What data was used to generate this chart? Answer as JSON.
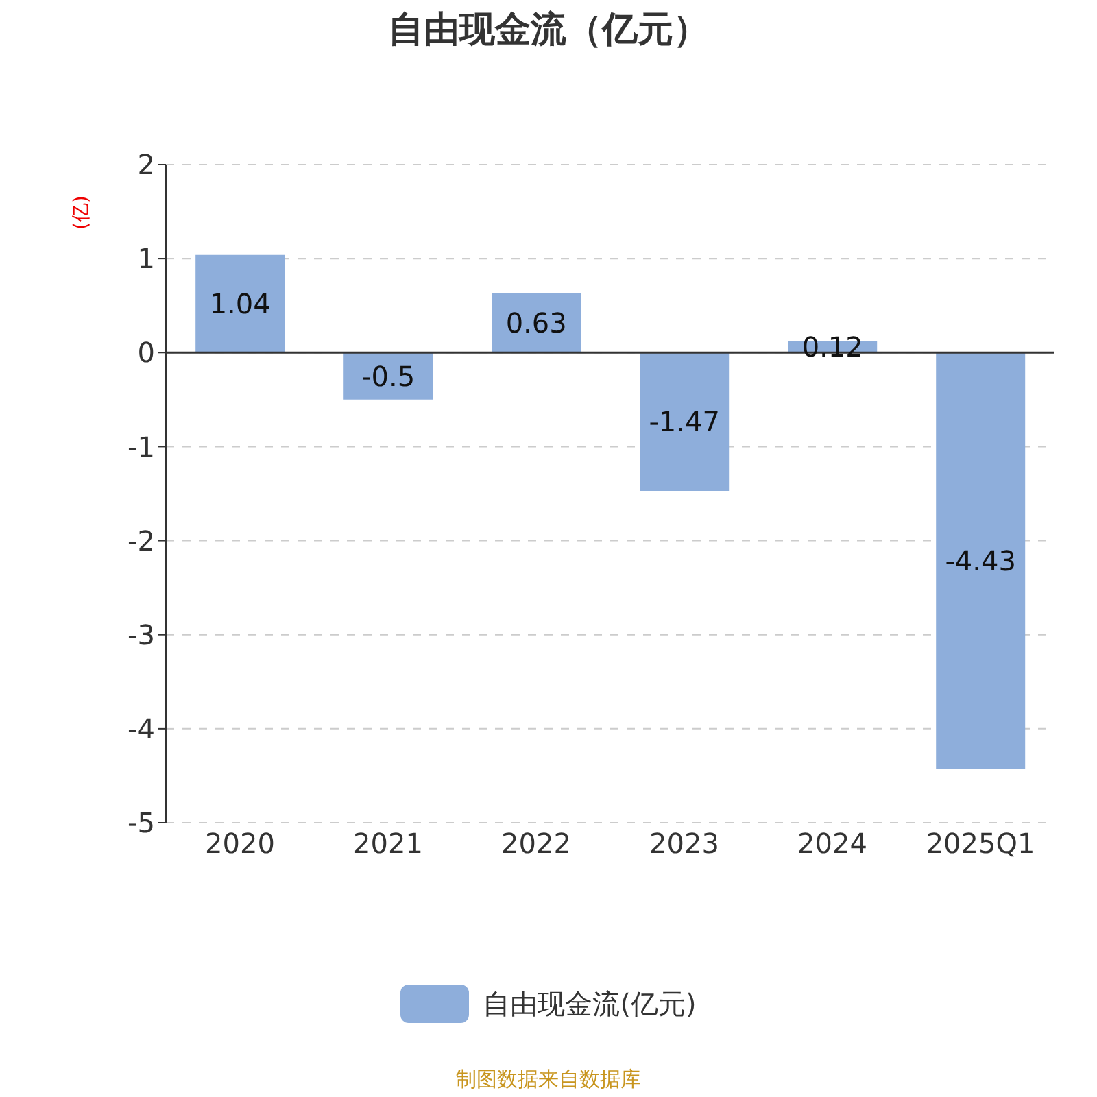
{
  "chart_data": {
    "type": "bar",
    "title": "自由现金流（亿元）",
    "ylabel": "(亿)",
    "categories": [
      "2020",
      "2021",
      "2022",
      "2023",
      "2024",
      "2025Q1"
    ],
    "series": [
      {
        "name": "自由现金流(亿元)",
        "color": "#8eaedb",
        "values": [
          1.04,
          -0.5,
          0.63,
          -1.47,
          0.12,
          -4.43
        ]
      }
    ],
    "ylim": [
      -5,
      2
    ],
    "yticks": [
      -5,
      -4,
      -3,
      -2,
      -1,
      0,
      1,
      2
    ],
    "grid": "y",
    "legend": "bottom",
    "data_labels": true,
    "annotations": [
      "制图数据来自数据库"
    ]
  }
}
